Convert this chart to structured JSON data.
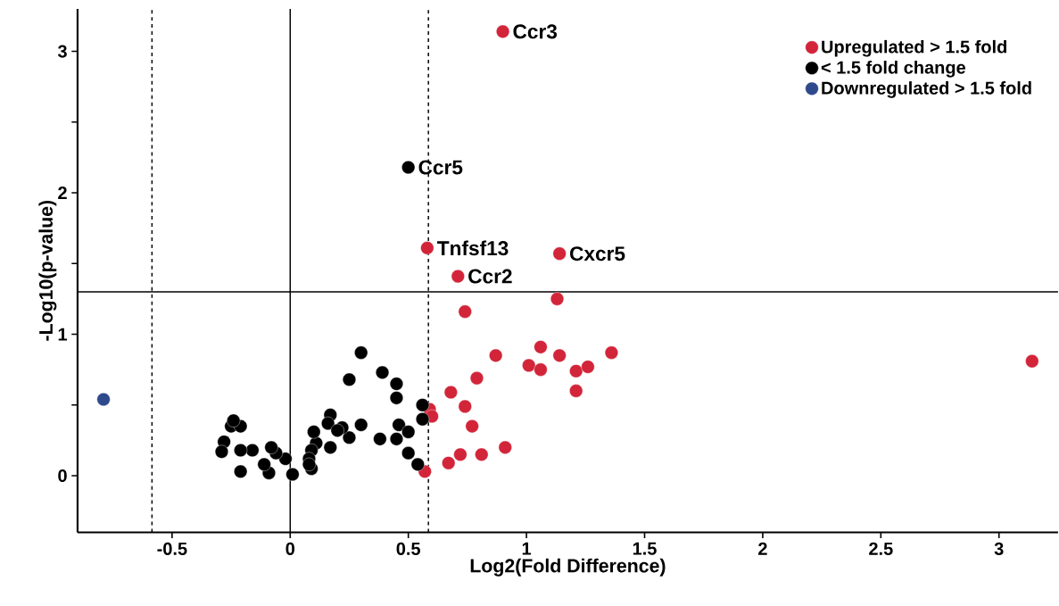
{
  "chart_data": {
    "type": "scatter",
    "xlabel": "Log2(Fold Difference)",
    "ylabel": "-Log10(p-value)",
    "xlim": [
      -0.9,
      3.25
    ],
    "ylim": [
      -0.4,
      3.3
    ],
    "xticks": [
      -0.5,
      0,
      0.5,
      1,
      1.5,
      2,
      2.5,
      3
    ],
    "yticks": [
      0,
      {
        "value": 0.5,
        "label": null
      },
      1,
      {
        "value": 1.5,
        "label": null
      },
      2,
      {
        "value": 2.5,
        "label": null
      },
      3
    ],
    "grid": false,
    "legend": "top right",
    "series": [
      {
        "name": "Upregulated > 1.5 fold",
        "color": "#d2253a",
        "x": [
          0.9,
          0.58,
          1.14,
          0.71,
          1.13,
          0.74,
          0.87,
          1.06,
          1.01,
          1.06,
          1.14,
          1.21,
          1.26,
          1.36,
          1.21,
          0.79,
          0.68,
          0.74,
          0.77,
          0.59,
          0.6,
          0.57,
          0.67,
          0.72,
          0.81,
          0.91,
          3.14
        ],
        "values": [
          3.14,
          1.61,
          1.57,
          1.41,
          1.25,
          1.16,
          0.85,
          0.91,
          0.78,
          0.75,
          0.85,
          0.74,
          0.77,
          0.87,
          0.6,
          0.69,
          0.59,
          0.49,
          0.35,
          0.47,
          0.42,
          0.03,
          0.09,
          0.15,
          0.15,
          0.2,
          0.81
        ]
      },
      {
        "name": "< 1.5 fold change",
        "color": "#000000",
        "x": [
          0.5,
          0.3,
          0.25,
          0.39,
          0.45,
          0.45,
          0.56,
          0.56,
          0.46,
          0.5,
          0.45,
          0.38,
          0.3,
          0.25,
          0.22,
          0.17,
          0.16,
          0.2,
          0.17,
          0.11,
          0.09,
          0.08,
          0.09,
          0.08,
          0.01,
          -0.02,
          -0.06,
          -0.08,
          -0.09,
          -0.11,
          -0.16,
          -0.21,
          -0.21,
          -0.28,
          -0.25,
          -0.21,
          -0.24,
          -0.29,
          0.5,
          0.54,
          0.1
        ],
        "values": [
          2.18,
          0.87,
          0.68,
          0.73,
          0.65,
          0.55,
          0.5,
          0.4,
          0.36,
          0.31,
          0.26,
          0.26,
          0.36,
          0.27,
          0.34,
          0.43,
          0.37,
          0.32,
          0.2,
          0.23,
          0.18,
          0.12,
          0.05,
          0.08,
          0.01,
          0.12,
          0.16,
          0.2,
          0.02,
          0.08,
          0.18,
          0.18,
          0.03,
          0.24,
          0.35,
          0.35,
          0.39,
          0.17,
          0.16,
          0.08,
          0.31
        ]
      },
      {
        "name": "Downregulated > 1.5 fold",
        "color": "#2e4a8c",
        "x": [
          -0.79
        ],
        "values": [
          0.54
        ]
      }
    ],
    "ref_lines": [
      {
        "axis": "x",
        "value": -0.585,
        "line_style": "dashed"
      },
      {
        "axis": "x",
        "value": 0.585,
        "line_style": "dashed"
      },
      {
        "axis": "x",
        "value": 0,
        "line_style": "solid"
      },
      {
        "axis": "y",
        "value": 1.3,
        "line_style": "solid"
      }
    ],
    "annotations": [
      {
        "text": "Ccr3",
        "x": 0.9,
        "y": 3.14
      },
      {
        "text": "Ccr5",
        "x": 0.5,
        "y": 2.18
      },
      {
        "text": "Tnfsf13",
        "x": 0.58,
        "y": 1.61
      },
      {
        "text": "Cxcr5",
        "x": 1.14,
        "y": 1.57
      },
      {
        "text": "Ccr2",
        "x": 0.71,
        "y": 1.41
      }
    ]
  }
}
